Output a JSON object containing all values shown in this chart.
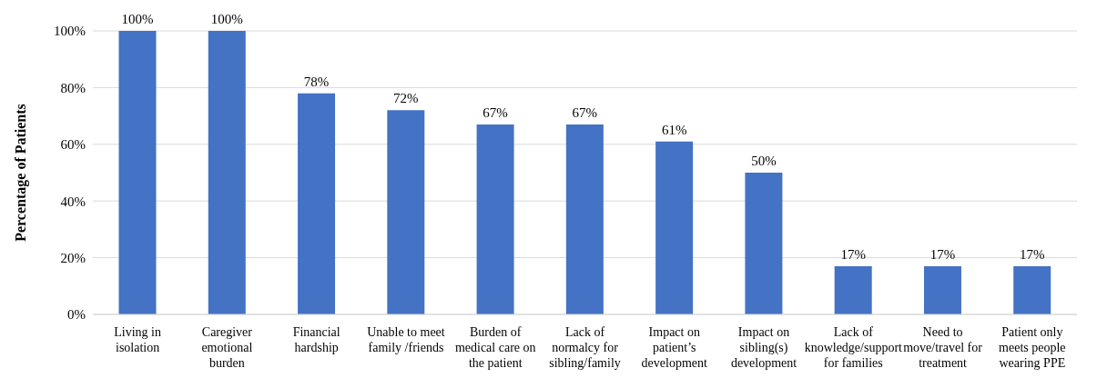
{
  "chart_data": {
    "type": "bar",
    "ylabel": "Percentage of Patients",
    "categories": [
      "Living in isolation",
      "Caregiver emotional burden",
      "Financial hardship",
      "Unable to meet family /friends",
      "Burden of medical care on the patient",
      "Lack of normalcy for sibling/family",
      "Impact on patient’s development",
      "Impact on sibling(s) development",
      "Lack of knowledge/support for families",
      "Need to move/travel for treatment",
      "Patient only meets people wearing PPE"
    ],
    "values": [
      100,
      100,
      78,
      72,
      67,
      67,
      61,
      50,
      17,
      17,
      17
    ],
    "value_labels": [
      "100%",
      "100%",
      "78%",
      "72%",
      "67%",
      "67%",
      "61%",
      "50%",
      "17%",
      "17%",
      "17%"
    ],
    "color": "#4472c4",
    "ylim": [
      0,
      100
    ],
    "yticks": [
      {
        "value": 0,
        "label": "0%"
      },
      {
        "value": 20,
        "label": "20%"
      },
      {
        "value": 40,
        "label": "40%"
      },
      {
        "value": 60,
        "label": "60%"
      },
      {
        "value": 80,
        "label": "80%"
      },
      {
        "value": 100,
        "label": "100%"
      }
    ],
    "grid": "y"
  }
}
